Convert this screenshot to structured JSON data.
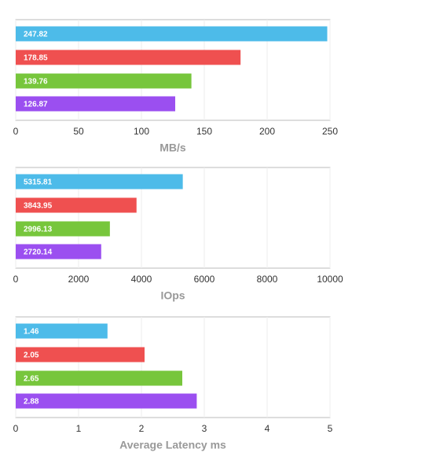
{
  "chart_data": [
    {
      "type": "bar",
      "orientation": "horizontal",
      "xlabel": "MB/s",
      "values": [
        247.82,
        178.85,
        139.76,
        126.87
      ],
      "colors": [
        "#4dbbe9",
        "#ef5050",
        "#77c63c",
        "#9b4ff0"
      ],
      "xlim": [
        0,
        250
      ],
      "xticks": [
        0,
        50,
        100,
        150,
        200,
        250
      ],
      "grid": true
    },
    {
      "type": "bar",
      "orientation": "horizontal",
      "xlabel": "IOps",
      "values": [
        5315.81,
        3843.95,
        2996.13,
        2720.14
      ],
      "colors": [
        "#4dbbe9",
        "#ef5050",
        "#77c63c",
        "#9b4ff0"
      ],
      "xlim": [
        0,
        10000
      ],
      "xticks": [
        0,
        2000,
        4000,
        6000,
        8000,
        10000
      ],
      "grid": true
    },
    {
      "type": "bar",
      "orientation": "horizontal",
      "xlabel": "Average Latency ms",
      "values": [
        1.46,
        2.05,
        2.65,
        2.88
      ],
      "colors": [
        "#4dbbe9",
        "#ef5050",
        "#77c63c",
        "#9b4ff0"
      ],
      "xlim": [
        0,
        5
      ],
      "xticks": [
        0,
        1,
        2,
        3,
        4,
        5
      ],
      "grid": true
    }
  ]
}
